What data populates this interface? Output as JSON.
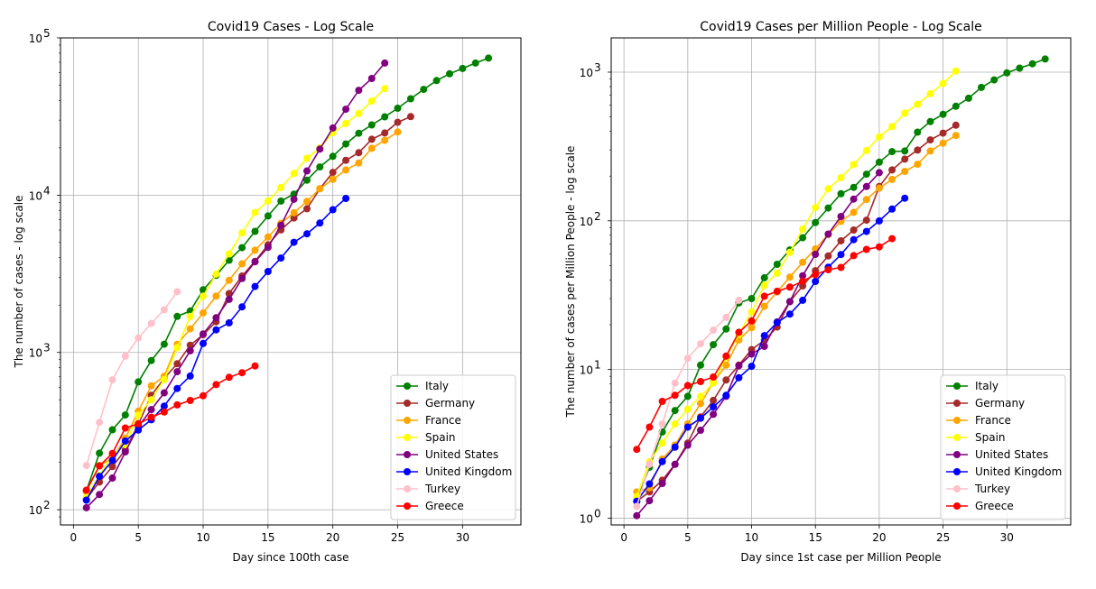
{
  "chart_data": [
    {
      "type": "line",
      "title": "Covid19 Cases - Log Scale",
      "xlabel": "Day since 100th case",
      "ylabel": "The number of cases - log scale",
      "yscale": "log",
      "xlim": [
        -1,
        34.5
      ],
      "ylim": [
        80,
        100000
      ],
      "xticks": [
        0,
        5,
        10,
        15,
        20,
        25,
        30
      ],
      "yticks": [
        {
          "value": 100,
          "base": "10",
          "exp": "2"
        },
        {
          "value": 1000,
          "base": "10",
          "exp": "3"
        },
        {
          "value": 10000,
          "base": "10",
          "exp": "4"
        },
        {
          "value": 100000,
          "base": "10",
          "exp": "5"
        }
      ],
      "grid": true,
      "legend_position": "lower right",
      "series": [
        {
          "name": "Italy",
          "color": "#008000",
          "x": [
            1,
            2,
            3,
            4,
            5,
            6,
            7,
            8,
            9,
            10,
            11,
            12,
            13,
            14,
            15,
            16,
            17,
            18,
            19,
            20,
            21,
            22,
            23,
            24,
            25,
            26,
            27,
            28,
            29,
            30,
            31,
            32
          ],
          "y": [
            132,
            229,
            322,
            400,
            650,
            888,
            1128,
            1694,
            1835,
            2502,
            3089,
            3858,
            4636,
            5883,
            7375,
            9172,
            10149,
            12462,
            15113,
            17660,
            21157,
            24747,
            27980,
            31506,
            35713,
            41035,
            47021,
            53578,
            59138,
            63927,
            69176,
            74386
          ]
        },
        {
          "name": "Germany",
          "color": "#a52a2a",
          "x": [
            1,
            2,
            3,
            4,
            5,
            6,
            7,
            8,
            9,
            10,
            11,
            12,
            13,
            14,
            15,
            16,
            17,
            18,
            19,
            20,
            21,
            22,
            23,
            24,
            25,
            26
          ],
          "y": [
            117,
            150,
            188,
            240,
            349,
            534,
            684,
            847,
            1112,
            1296,
            1567,
            2369,
            3062,
            3795,
            4838,
            6012,
            7156,
            8198,
            10999,
            13957,
            16662,
            18610,
            22672,
            24873,
            29056,
            31554
          ]
        },
        {
          "name": "France",
          "color": "#ffa500",
          "x": [
            1,
            2,
            3,
            4,
            5,
            6,
            7,
            8,
            9,
            10,
            11,
            12,
            13,
            14,
            15,
            16,
            17,
            18,
            19,
            20,
            21,
            22,
            23,
            24,
            25
          ],
          "y": [
            130,
            191,
            212,
            285,
            423,
            613,
            706,
            1126,
            1412,
            1784,
            2281,
            2876,
            3661,
            4469,
            5423,
            6633,
            7730,
            9134,
            10995,
            12612,
            14459,
            16018,
            19856,
            22304,
            25233
          ]
        },
        {
          "name": "Spain",
          "color": "#ffff00",
          "x": [
            1,
            2,
            3,
            4,
            5,
            6,
            7,
            8,
            9,
            10,
            11,
            12,
            13,
            14,
            15,
            16,
            17,
            18,
            19,
            20,
            21,
            22,
            23,
            24
          ],
          "y": [
            120,
            165,
            222,
            259,
            400,
            500,
            673,
            1073,
            1695,
            2277,
            3146,
            4231,
            5753,
            7753,
            9191,
            11178,
            13716,
            17147,
            19980,
            24926,
            28572,
            33089,
            39673,
            47610
          ]
        },
        {
          "name": "United States",
          "color": "#800080",
          "x": [
            1,
            2,
            3,
            4,
            5,
            6,
            7,
            8,
            9,
            10,
            11,
            12,
            13,
            14,
            15,
            16,
            17,
            18,
            19,
            20,
            21,
            22,
            23,
            24
          ],
          "y": [
            103,
            125,
            159,
            233,
            338,
            433,
            554,
            754,
            1025,
            1312,
            1663,
            2174,
            2951,
            3774,
            4661,
            6427,
            9415,
            14250,
            19624,
            26747,
            35206,
            46442,
            55231,
            69194
          ]
        },
        {
          "name": "United Kingdom",
          "color": "#0000ff",
          "x": [
            1,
            2,
            3,
            4,
            5,
            6,
            7,
            8,
            9,
            10,
            11,
            12,
            13,
            14,
            15,
            16,
            17,
            18,
            19,
            20,
            21
          ],
          "y": [
            115,
            163,
            206,
            273,
            321,
            373,
            456,
            590,
            708,
            1140,
            1391,
            1543,
            1950,
            2626,
            3269,
            3983,
            5018,
            5683,
            6650,
            8077,
            9529
          ]
        },
        {
          "name": "Turkey",
          "color": "#ffc0cb",
          "x": [
            1,
            2,
            3,
            4,
            5,
            6,
            7,
            8
          ],
          "y": [
            191,
            359,
            670,
            947,
            1236,
            1529,
            1872,
            2433
          ]
        },
        {
          "name": "Greece",
          "color": "#ff0000",
          "x": [
            1,
            2,
            3,
            4,
            5,
            6,
            7,
            8,
            9,
            10,
            11,
            12,
            13,
            14
          ],
          "y": [
            133,
            190,
            228,
            331,
            352,
            387,
            418,
            464,
            495,
            530,
            624,
            695,
            743,
            821
          ]
        }
      ]
    },
    {
      "type": "line",
      "title": "Covid19 Cases per Million People - Log Scale",
      "xlabel": "Day since 1st case per Million People",
      "ylabel": "The number of cases per Million People - log scale",
      "yscale": "log",
      "xlim": [
        -1,
        35
      ],
      "ylim": [
        0.9,
        1700
      ],
      "xticks": [
        0,
        5,
        10,
        15,
        20,
        25,
        30
      ],
      "yticks": [
        {
          "value": 1,
          "base": "10",
          "exp": "0"
        },
        {
          "value": 10,
          "base": "10",
          "exp": "1"
        },
        {
          "value": 100,
          "base": "10",
          "exp": "2"
        },
        {
          "value": 1000,
          "base": "10",
          "exp": "3"
        }
      ],
      "grid": true,
      "legend_position": "lower right",
      "series": [
        {
          "name": "Italy",
          "color": "#008000",
          "x": [
            1,
            2,
            3,
            4,
            5,
            6,
            7,
            8,
            9,
            10,
            11,
            12,
            13,
            14,
            15,
            16,
            17,
            18,
            19,
            20,
            21,
            22,
            23,
            24,
            25,
            26,
            27,
            28,
            29,
            30,
            31,
            32,
            33
          ],
          "y": [
            1.3,
            2.2,
            3.8,
            5.3,
            6.6,
            10.7,
            14.7,
            18.7,
            28,
            30,
            41.4,
            51,
            63.7,
            76.9,
            97.4,
            122,
            152,
            168,
            206,
            248,
            292,
            295,
            395,
            465,
            521,
            590,
            668,
            790,
            886,
            989,
            1064,
            1139,
            1226
          ]
        },
        {
          "name": "Germany",
          "color": "#a52a2a",
          "x": [
            1,
            2,
            3,
            4,
            5,
            6,
            7,
            8,
            9,
            10,
            11,
            12,
            13,
            14,
            15,
            16,
            17,
            18,
            19,
            20,
            21,
            22,
            23,
            24,
            25,
            26
          ],
          "y": [
            1.3,
            1.5,
            1.8,
            2.3,
            3.2,
            4.8,
            6.2,
            8.5,
            10.7,
            13.6,
            15.7,
            19.3,
            28.6,
            36.5,
            46.2,
            58,
            73.3,
            86.7,
            101,
            170,
            220,
            260,
            299,
            350,
            389,
            440
          ]
        },
        {
          "name": "France",
          "color": "#ffa500",
          "x": [
            1,
            2,
            3,
            4,
            5,
            6,
            7,
            8,
            9,
            10,
            11,
            12,
            13,
            14,
            15,
            16,
            17,
            18,
            19,
            20,
            21,
            22,
            23,
            24,
            25,
            26
          ],
          "y": [
            1.5,
            1.6,
            2.5,
            3.1,
            4.3,
            5.9,
            8.2,
            10.7,
            15.8,
            19.1,
            26.6,
            33.2,
            41.8,
            52.6,
            64.8,
            80.8,
            99.2,
            114,
            139,
            166,
            190,
            215,
            240,
            295,
            333,
            375
          ]
        },
        {
          "name": "Spain",
          "color": "#ffff00",
          "x": [
            1,
            2,
            3,
            4,
            5,
            6,
            7,
            8,
            9,
            10,
            11,
            12,
            13,
            14,
            15,
            16,
            17,
            18,
            19,
            20,
            21,
            22,
            23,
            24,
            25,
            26
          ],
          "y": [
            1.4,
            2.4,
            3.2,
            4.3,
            5.4,
            6.6,
            8.1,
            12.1,
            17.2,
            24.4,
            36.8,
            44.4,
            61.3,
            88,
            123,
            164,
            195,
            239,
            297,
            367,
            430,
            530,
            608,
            716,
            840,
            1017
          ]
        },
        {
          "name": "United States",
          "color": "#800080",
          "x": [
            1,
            2,
            3,
            4,
            5,
            6,
            7,
            8,
            9,
            10,
            11,
            12,
            13,
            14,
            15,
            16,
            17,
            18,
            19,
            20
          ],
          "y": [
            1.04,
            1.31,
            1.71,
            2.3,
            3.1,
            3.9,
            5.0,
            6.6,
            10.6,
            12.7,
            14.3,
            20.9,
            28.6,
            42.7,
            59.5,
            81.5,
            107,
            140,
            170,
            211
          ]
        },
        {
          "name": "United Kingdom",
          "color": "#0000ff",
          "x": [
            1,
            2,
            3,
            4,
            5,
            6,
            7,
            8,
            9,
            10,
            11,
            12,
            13,
            14,
            15,
            16,
            17,
            18,
            19,
            20,
            21,
            22
          ],
          "y": [
            1.3,
            1.7,
            2.4,
            3.0,
            4.1,
            4.7,
            5.6,
            6.7,
            8.8,
            10.5,
            16.9,
            20.7,
            23.6,
            29.2,
            39.1,
            48.7,
            59.3,
            74.7,
            84.8,
            99.9,
            120,
            142
          ]
        },
        {
          "name": "Turkey",
          "color": "#ffc0cb",
          "x": [
            1,
            2,
            3,
            4,
            5,
            6,
            7,
            8,
            9
          ],
          "y": [
            1.2,
            2.3,
            4.3,
            8.1,
            11.9,
            14.9,
            18.4,
            22.4,
            29.2
          ]
        },
        {
          "name": "Greece",
          "color": "#ff0000",
          "x": [
            1,
            2,
            3,
            4,
            5,
            6,
            7,
            8,
            9,
            10,
            11,
            12,
            13,
            14,
            15,
            16,
            17,
            18,
            19,
            20,
            21
          ],
          "y": [
            2.9,
            4.1,
            6.1,
            6.7,
            7.8,
            8.3,
            8.9,
            12.3,
            17.8,
            21.2,
            31.1,
            33.6,
            35.8,
            39.2,
            43.5,
            46.9,
            48.6,
            58.3,
            64.2,
            66.8,
            75.8
          ]
        }
      ]
    }
  ]
}
